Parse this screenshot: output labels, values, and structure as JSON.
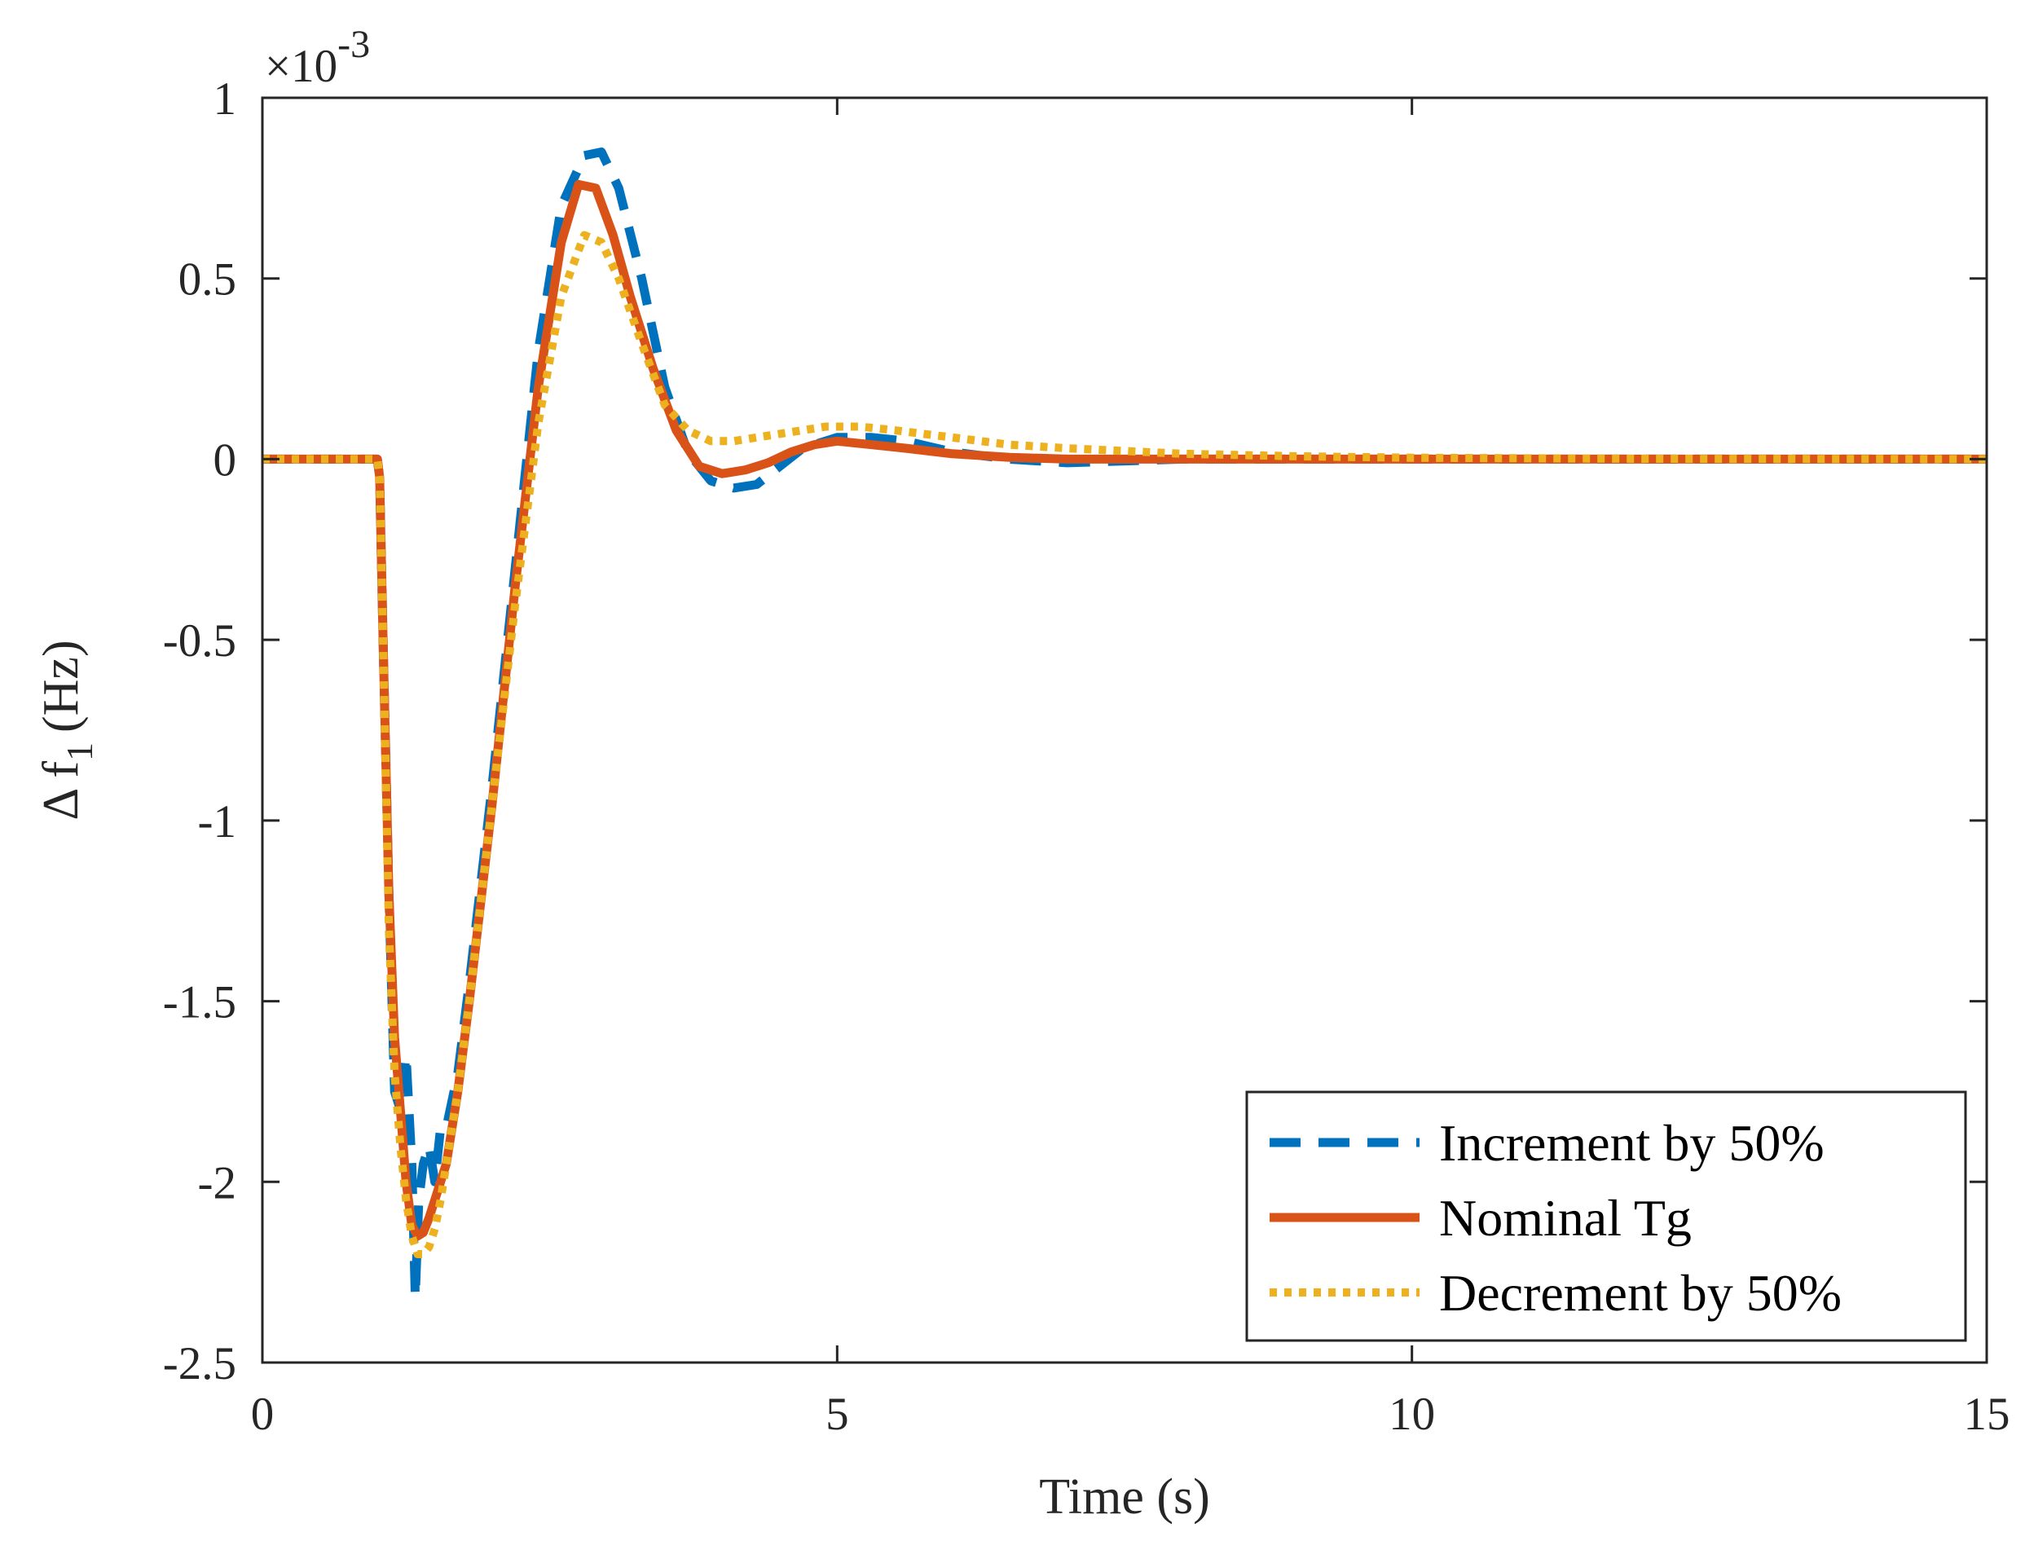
{
  "chart_data": {
    "type": "line",
    "title": "",
    "xlabel": "Time (s)",
    "ylabel_main": "Δ f",
    "ylabel_sub": "1",
    "ylabel_unit": "(Hz)",
    "exponent": {
      "base": "×10",
      "power": "-3"
    },
    "xlim": [
      0,
      15
    ],
    "ylim": [
      -2.5,
      1
    ],
    "xticks": [
      0,
      5,
      10,
      15
    ],
    "xtick_labels": [
      "0",
      "5",
      "10",
      "15"
    ],
    "yticks": [
      1,
      0.5,
      0,
      -0.5,
      -1,
      -1.5,
      -2,
      -2.5
    ],
    "ytick_labels": [
      "1",
      "0.5",
      "0",
      "-0.5",
      "-1",
      "-1.5",
      "-2",
      "-2.5"
    ],
    "grid": false,
    "legend_position": "bottom-right",
    "series": [
      {
        "name": "Increment by 50%",
        "color": "#0072BD",
        "style": "dashed",
        "x": [
          0,
          1.0,
          1.02,
          1.05,
          1.1,
          1.15,
          1.2,
          1.25,
          1.3,
          1.33,
          1.36,
          1.4,
          1.45,
          1.5,
          1.55,
          1.6,
          1.7,
          1.8,
          2.0,
          2.2,
          2.4,
          2.6,
          2.8,
          2.95,
          3.1,
          3.3,
          3.5,
          3.7,
          3.9,
          4.1,
          4.3,
          4.5,
          4.7,
          5.0,
          5.3,
          5.6,
          6.0,
          6.5,
          7.0,
          8.0,
          9.0,
          10.0,
          12.0,
          15.0
        ],
        "y": [
          0,
          0,
          -0.05,
          -0.5,
          -1.2,
          -1.75,
          -1.8,
          -1.65,
          -1.95,
          -2.32,
          -2.05,
          -1.95,
          -1.9,
          -2.0,
          -1.85,
          -1.85,
          -1.7,
          -1.45,
          -0.9,
          -0.3,
          0.3,
          0.7,
          0.84,
          0.85,
          0.75,
          0.5,
          0.2,
          0.02,
          -0.06,
          -0.08,
          -0.07,
          -0.02,
          0.03,
          0.06,
          0.06,
          0.05,
          0.02,
          0.0,
          -0.01,
          0,
          0,
          0,
          0,
          0
        ]
      },
      {
        "name": "Nominal Tg",
        "color": "#D95319",
        "style": "solid",
        "x": [
          0,
          1.0,
          1.02,
          1.05,
          1.1,
          1.15,
          1.2,
          1.25,
          1.3,
          1.35,
          1.4,
          1.45,
          1.5,
          1.6,
          1.7,
          1.8,
          2.0,
          2.2,
          2.4,
          2.6,
          2.75,
          2.9,
          3.05,
          3.2,
          3.4,
          3.6,
          3.8,
          4.0,
          4.2,
          4.4,
          4.6,
          4.8,
          5.0,
          5.3,
          5.6,
          6.0,
          6.5,
          7.0,
          8.0,
          9.0,
          10.0,
          12.0,
          15.0
        ],
        "y": [
          0,
          0,
          -0.05,
          -0.5,
          -1.2,
          -1.6,
          -1.8,
          -2.0,
          -2.12,
          -2.15,
          -2.14,
          -2.1,
          -2.05,
          -1.95,
          -1.75,
          -1.5,
          -0.95,
          -0.35,
          0.2,
          0.6,
          0.76,
          0.75,
          0.62,
          0.45,
          0.25,
          0.08,
          -0.02,
          -0.04,
          -0.03,
          -0.01,
          0.02,
          0.04,
          0.05,
          0.04,
          0.03,
          0.015,
          0.005,
          0.0,
          0,
          0,
          0,
          0,
          0
        ]
      },
      {
        "name": "Decrement by 50%",
        "color": "#EDB120",
        "style": "dotted",
        "x": [
          0,
          1.0,
          1.02,
          1.05,
          1.1,
          1.15,
          1.2,
          1.25,
          1.3,
          1.35,
          1.4,
          1.45,
          1.5,
          1.55,
          1.6,
          1.7,
          1.8,
          2.0,
          2.2,
          2.4,
          2.6,
          2.8,
          2.95,
          3.1,
          3.3,
          3.5,
          3.7,
          3.9,
          4.1,
          4.3,
          4.5,
          4.7,
          4.9,
          5.2,
          5.5,
          6.0,
          6.5,
          7.0,
          8.0,
          9.0,
          10.0,
          12.0,
          15.0
        ],
        "y": [
          0,
          0,
          -0.05,
          -0.5,
          -1.3,
          -1.7,
          -1.9,
          -2.05,
          -2.15,
          -2.2,
          -2.2,
          -2.18,
          -2.13,
          -2.05,
          -1.95,
          -1.75,
          -1.5,
          -0.95,
          -0.4,
          0.1,
          0.45,
          0.62,
          0.6,
          0.5,
          0.32,
          0.15,
          0.08,
          0.05,
          0.05,
          0.06,
          0.07,
          0.08,
          0.09,
          0.09,
          0.08,
          0.06,
          0.04,
          0.03,
          0.015,
          0.008,
          0.004,
          0.001,
          0
        ]
      }
    ]
  }
}
